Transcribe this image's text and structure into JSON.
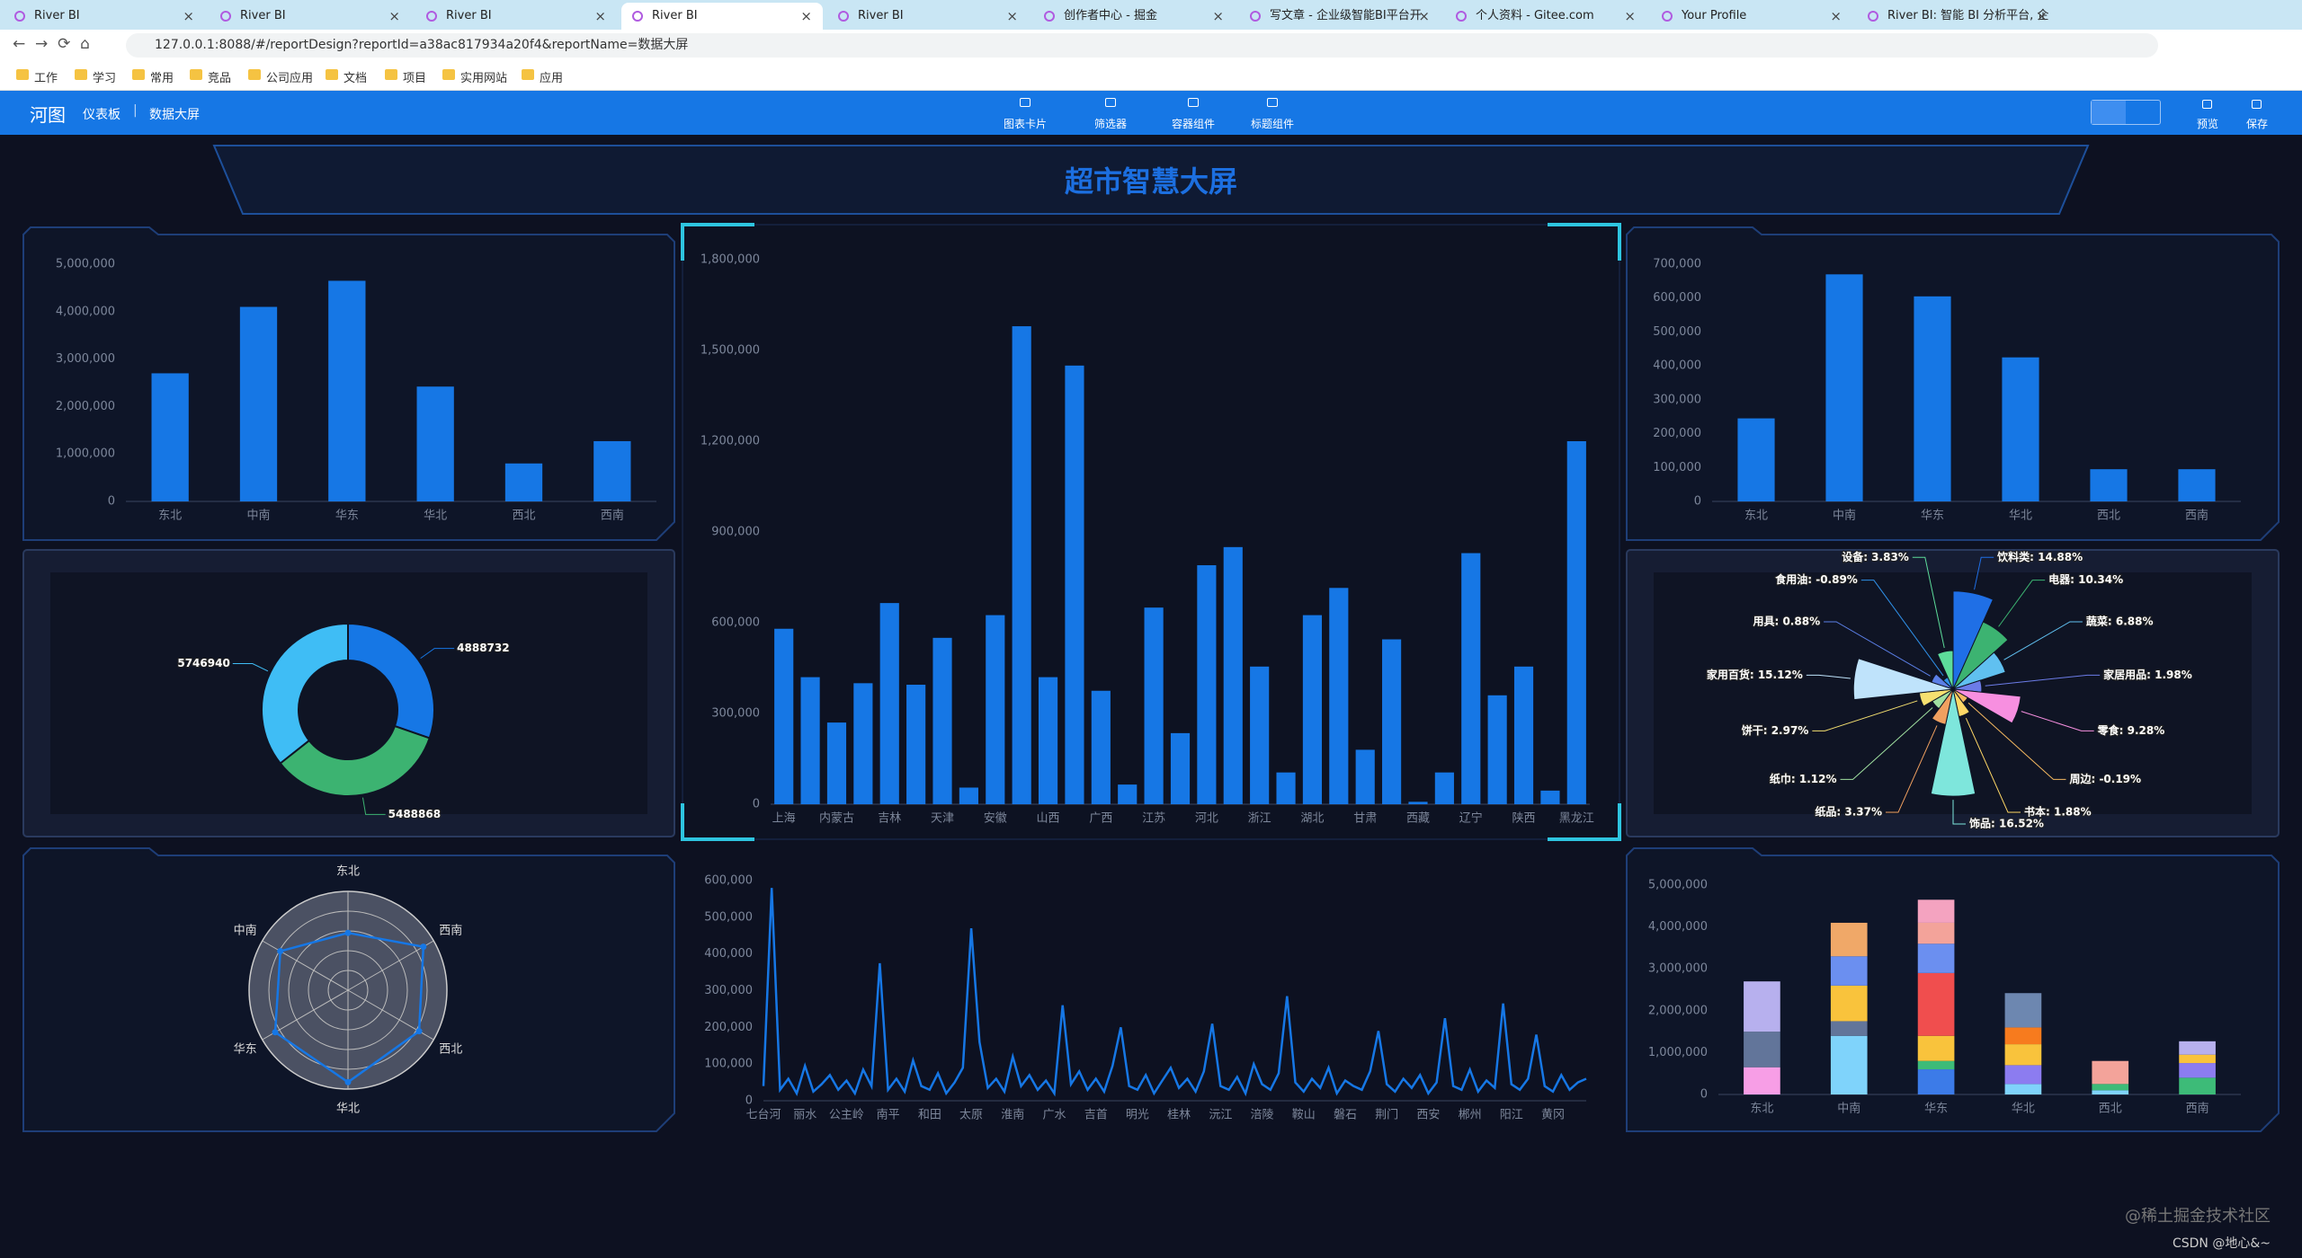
{
  "browser": {
    "tabs": [
      "River BI",
      "River BI",
      "River BI",
      "River BI",
      "River BI",
      "创作者中心 - 掘金",
      "写文章 - 企业级智能BI平台开",
      "个人资料 - Gitee.com",
      "Your Profile",
      "River BI: 智能 BI 分析平台, 企"
    ],
    "url": "127.0.0.1:8088/#/reportDesign?reportId=a38ac817934a20f4&reportName=数据大屏",
    "bookmarks": [
      "工作",
      "学习",
      "常用",
      "竞品",
      "公司应用",
      "文档",
      "项目",
      "实用网站",
      "应用"
    ]
  },
  "app": {
    "logo": "河图",
    "nav": [
      "仪表板",
      "数据大屏"
    ],
    "tools": [
      "图表卡片",
      "筛选器",
      "容器组件",
      "标题组件"
    ],
    "actions": [
      "预览",
      "保存"
    ]
  },
  "dashboard": {
    "title": "超市智慧大屏"
  },
  "watermark": [
    "@稀土掘金技术社区",
    "CSDN @地心&~"
  ],
  "chart_data": [
    {
      "type": "bar",
      "categories": [
        "东北",
        "中南",
        "华东",
        "华北",
        "西北",
        "西南"
      ],
      "values": [
        2700000,
        4100000,
        4650000,
        2420000,
        800000,
        1270000
      ],
      "color": "#1677e5",
      "ylim": [
        0,
        5000000
      ],
      "yticks": [
        0,
        {
          "value": 1000000,
          "label": "1,000,000"
        },
        {
          "value": 2000000,
          "label": "2,000,000"
        },
        {
          "value": 3000000,
          "label": "3,000,000"
        },
        {
          "value": 4000000,
          "label": "4,000,000"
        },
        {
          "value": 5000000,
          "label": "5,000,000"
        }
      ],
      "grid": false
    },
    {
      "type": "bar",
      "categories": [
        "上海",
        null,
        "内蒙古",
        null,
        "吉林",
        null,
        "天津",
        null,
        "安徽",
        null,
        "山西",
        null,
        "广西",
        null,
        "江苏",
        null,
        "河北",
        null,
        "浙江",
        null,
        "湖北",
        null,
        "甘肃",
        null,
        "西藏",
        null,
        "辽宁",
        null,
        "陕西",
        null,
        "黑龙江"
      ],
      "values": [
        580000,
        420000,
        270000,
        400000,
        665000,
        395000,
        550000,
        55000,
        625000,
        1580000,
        420000,
        1450000,
        375000,
        65000,
        650000,
        235000,
        790000,
        850000,
        455000,
        105000,
        625000,
        715000,
        180000,
        545000,
        8000,
        105000,
        830000,
        360000,
        455000,
        45000,
        1200000
      ],
      "color": "#1677e5",
      "ylim": [
        0,
        1800000
      ],
      "yticks": [
        0,
        {
          "value": 300000,
          "label": "300,000"
        },
        {
          "value": 600000,
          "label": "600,000"
        },
        {
          "value": 900000,
          "label": "900,000"
        },
        {
          "value": 1200000,
          "label": "1,200,000"
        },
        {
          "value": 1500000,
          "label": "1,500,000"
        },
        {
          "value": 1800000,
          "label": "1,800,000"
        }
      ],
      "grid": false
    },
    {
      "type": "bar",
      "categories": [
        "东北",
        "中南",
        "华东",
        "华北",
        "西北",
        "西南"
      ],
      "values": [
        245000,
        670000,
        605000,
        425000,
        95000,
        95000
      ],
      "color": "#1677e5",
      "ylim": [
        0,
        700000
      ],
      "yticks": [
        0,
        {
          "value": 100000,
          "label": "100,000"
        },
        {
          "value": 200000,
          "label": "200,000"
        },
        {
          "value": 300000,
          "label": "300,000"
        },
        {
          "value": 400000,
          "label": "400,000"
        },
        {
          "value": 500000,
          "label": "500,000"
        },
        {
          "value": 600000,
          "label": "600,000"
        },
        {
          "value": 700000,
          "label": "700,000"
        }
      ],
      "grid": false
    },
    {
      "type": "pie",
      "donut": true,
      "values": [
        4888732,
        5488868,
        5746940
      ],
      "colors": [
        "#1677e5",
        "#3cb371",
        "#3fbdf5"
      ]
    },
    {
      "type": "pie",
      "rose": true,
      "values": [
        14.88,
        10.34,
        6.88,
        1.98,
        9.28,
        -0.19,
        1.88,
        16.52,
        3.37,
        1.12,
        2.97,
        15.12,
        0.88,
        -0.89,
        3.83
      ],
      "value_labels": [
        "饮料类: 14.88%",
        "电器: 10.34%",
        "蔬菜: 6.88%",
        "家居用品: 1.98%",
        "零食: 9.28%",
        "周边: -0.19%",
        "书本: 1.88%",
        "饰品: 16.52%",
        "纸品: 3.37%",
        "纸巾: 1.12%",
        "饼干: 2.97%",
        "家用百货: 15.12%",
        "用具: 0.88%",
        "食用油: -0.89%",
        "设备: 3.83%"
      ],
      "colors": [
        "#1f6fe6",
        "#3cb371",
        "#60c0f0",
        "#6c7ce8",
        "#f78fe0",
        "#f4b860",
        "#ffd866",
        "#7ee6dc",
        "#f0a060",
        "#a0e0a0",
        "#f5e070",
        "#bfe3fb",
        "#5b7fe6",
        "#2f8fe6",
        "#5ddc9a"
      ]
    },
    {
      "type": "radar",
      "categories": [
        "东北",
        "西南",
        "西北",
        "华北",
        "华东",
        "中南"
      ],
      "values": [
        58,
        88,
        83,
        93,
        85,
        79
      ],
      "rlim": [
        0,
        100
      ],
      "color": "#1677e5"
    },
    {
      "type": "line",
      "categories": [
        "七台河",
        null,
        null,
        null,
        null,
        "丽水",
        null,
        null,
        null,
        null,
        "公主岭",
        null,
        null,
        null,
        null,
        "南平",
        null,
        null,
        null,
        null,
        "和田",
        null,
        null,
        null,
        null,
        "太原",
        null,
        null,
        null,
        null,
        "淮南",
        null,
        null,
        null,
        null,
        "广水",
        null,
        null,
        null,
        null,
        "吉首",
        null,
        null,
        null,
        null,
        "明光",
        null,
        null,
        null,
        null,
        "桂林",
        null,
        null,
        null,
        null,
        "沅江",
        null,
        null,
        null,
        null,
        "涪陵",
        null,
        null,
        null,
        null,
        "鞍山",
        null,
        null,
        null,
        null,
        "磐石",
        null,
        null,
        null,
        null,
        "荆门",
        null,
        null,
        null,
        null,
        "西安",
        null,
        null,
        null,
        null,
        "郴州",
        null,
        null,
        null,
        null,
        "阳江",
        null,
        null,
        null,
        null,
        "黄冈",
        null,
        null,
        null,
        null
      ],
      "values": [
        40000,
        580000,
        30000,
        60000,
        20000,
        95000,
        25000,
        45000,
        70000,
        30000,
        55000,
        20000,
        85000,
        40000,
        375000,
        30000,
        60000,
        25000,
        110000,
        40000,
        30000,
        75000,
        20000,
        50000,
        90000,
        470000,
        160000,
        35000,
        60000,
        25000,
        120000,
        40000,
        70000,
        30000,
        55000,
        20000,
        260000,
        45000,
        80000,
        30000,
        60000,
        25000,
        95000,
        200000,
        40000,
        30000,
        70000,
        20000,
        55000,
        90000,
        35000,
        60000,
        25000,
        80000,
        210000,
        40000,
        30000,
        65000,
        20000,
        100000,
        45000,
        30000,
        75000,
        285000,
        50000,
        25000,
        60000,
        35000,
        90000,
        20000,
        55000,
        40000,
        30000,
        80000,
        190000,
        45000,
        25000,
        60000,
        35000,
        70000,
        20000,
        50000,
        225000,
        40000,
        30000,
        85000,
        25000,
        55000,
        35000,
        265000,
        45000,
        30000,
        60000,
        180000,
        40000,
        25000,
        70000,
        30000,
        50000,
        60000
      ],
      "color": "#1677e5",
      "ylim": [
        0,
        600000
      ],
      "yticks": [
        0,
        {
          "value": 100000,
          "label": "100,000"
        },
        {
          "value": 200000,
          "label": "200,000"
        },
        {
          "value": 300000,
          "label": "300,000"
        },
        {
          "value": 400000,
          "label": "400,000"
        },
        {
          "value": 500000,
          "label": "500,000"
        },
        {
          "value": 600000,
          "label": "600,000"
        }
      ],
      "grid": false
    },
    {
      "type": "bar",
      "stacked": true,
      "categories": [
        "东北",
        "中南",
        "华东",
        "华北",
        "西北",
        "西南"
      ],
      "ylim": [
        0,
        5000000
      ],
      "yticks": [
        0,
        {
          "value": 1000000,
          "label": "1,000,000"
        },
        {
          "value": 2000000,
          "label": "2,000,000"
        },
        {
          "value": 3000000,
          "label": "3,000,000"
        },
        {
          "value": 4000000,
          "label": "4,000,000"
        },
        {
          "value": 5000000,
          "label": "5,000,000"
        }
      ],
      "grid": false,
      "series": [
        {
          "color": "#f79ee6",
          "values": [
            650000,
            null,
            null,
            null,
            null,
            null
          ]
        },
        {
          "color": "#7fd3fb",
          "values": [
            null,
            1400000,
            null,
            250000,
            100000,
            null
          ]
        },
        {
          "color": "#3c7be8",
          "values": [
            null,
            null,
            600000,
            null,
            null,
            null
          ]
        },
        {
          "color": "#3dbb78",
          "values": [
            null,
            null,
            200000,
            null,
            150000,
            400000
          ]
        },
        {
          "color": "#62759a",
          "values": [
            850000,
            350000,
            null,
            null,
            null,
            null
          ]
        },
        {
          "color": "#8c7cf0",
          "values": [
            null,
            null,
            null,
            450000,
            null,
            350000
          ]
        },
        {
          "color": "#f9c33c",
          "values": [
            null,
            850000,
            600000,
            500000,
            null,
            200000
          ]
        },
        {
          "color": "#f04e4e",
          "values": [
            null,
            null,
            1500000,
            null,
            null,
            null
          ]
        },
        {
          "color": "#f77b1e",
          "values": [
            null,
            null,
            null,
            400000,
            null,
            null
          ]
        },
        {
          "color": "#6b8ff0",
          "values": [
            null,
            700000,
            700000,
            null,
            null,
            null
          ]
        },
        {
          "color": "#6d87b0",
          "values": [
            null,
            null,
            null,
            820000,
            null,
            null
          ]
        },
        {
          "color": "#f3a39a",
          "values": [
            null,
            null,
            500000,
            null,
            550000,
            null
          ]
        },
        {
          "color": "#b7b0ee",
          "values": [
            1200000,
            null,
            null,
            null,
            null,
            320000
          ]
        },
        {
          "color": "#f0a868",
          "values": [
            null,
            800000,
            null,
            null,
            null,
            null
          ]
        },
        {
          "color": "#f4a3c0",
          "values": [
            null,
            null,
            550000,
            null,
            null,
            null
          ]
        }
      ]
    }
  ]
}
